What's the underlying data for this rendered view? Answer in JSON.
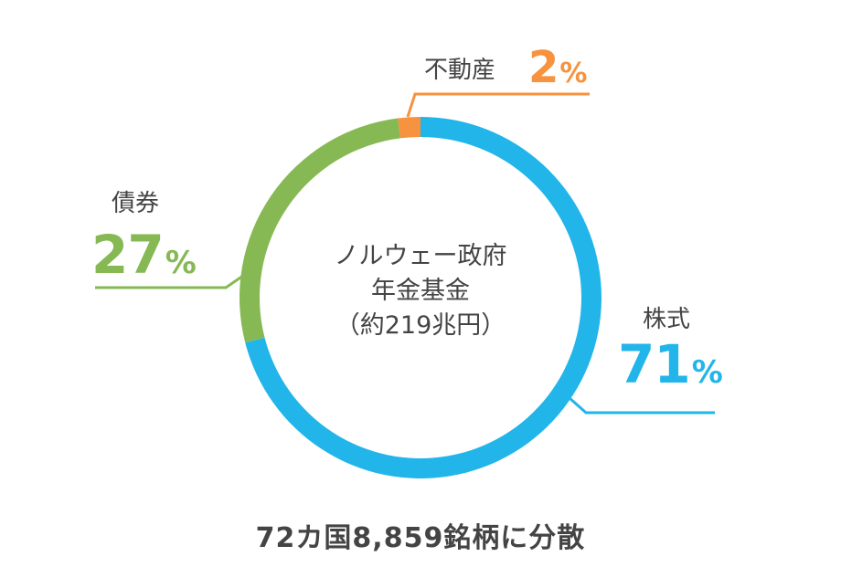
{
  "chart_data": {
    "type": "pie",
    "center_label": {
      "line1": "ノルウェー政府",
      "line2": "年金基金",
      "line3": "（約219兆円）"
    },
    "slices": [
      {
        "label": "株式",
        "value": 71,
        "value_text": "71",
        "unit": "%",
        "color": "#22b5ea"
      },
      {
        "label": "不動産",
        "value": 2,
        "value_text": "2",
        "unit": "%",
        "color": "#f7923f"
      },
      {
        "label": "債券",
        "value": 27,
        "value_text": "27",
        "unit": "%",
        "color": "#86b953"
      }
    ]
  },
  "footer": {
    "text": "72カ国8,859銘柄に分散"
  }
}
